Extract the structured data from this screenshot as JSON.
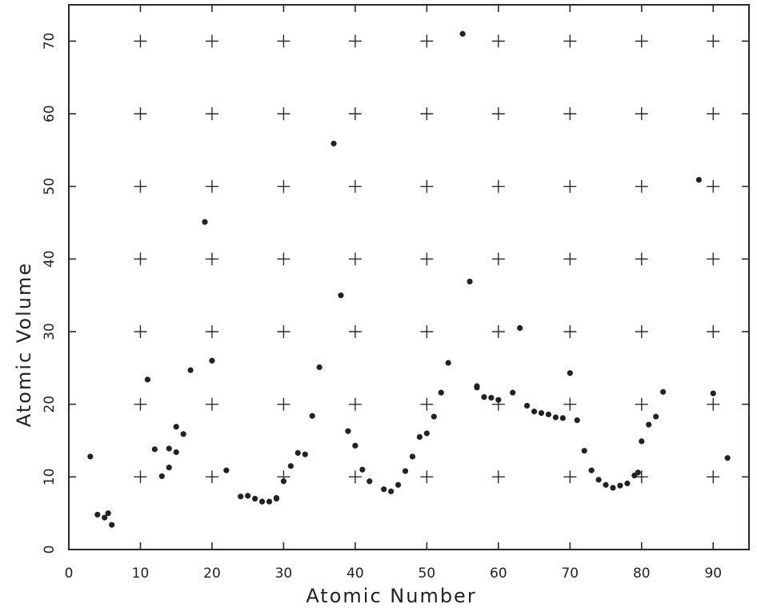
{
  "chart_data": {
    "type": "scatter",
    "xlabel": "Atomic Number",
    "ylabel": "Atomic Volume",
    "xlim": [
      0,
      95
    ],
    "ylim": [
      0,
      75
    ],
    "x_ticks": [
      0,
      10,
      20,
      30,
      40,
      50,
      60,
      70,
      80,
      90
    ],
    "y_ticks": [
      0,
      10,
      20,
      30,
      40,
      50,
      60,
      70
    ],
    "grid": "plus-sign markers at tick intersections",
    "series": [
      {
        "points": [
          [
            3,
            12.8
          ],
          [
            4,
            4.8
          ],
          [
            5,
            4.4
          ],
          [
            5.5,
            5.0
          ],
          [
            6,
            3.4
          ],
          [
            11,
            23.4
          ],
          [
            12,
            13.8
          ],
          [
            13,
            10.1
          ],
          [
            14,
            11.3
          ],
          [
            14,
            13.9
          ],
          [
            15,
            16.9
          ],
          [
            15,
            13.4
          ],
          [
            16,
            15.9
          ],
          [
            17,
            24.7
          ],
          [
            19,
            45.1
          ],
          [
            20,
            26.0
          ],
          [
            22,
            10.9
          ],
          [
            24,
            7.3
          ],
          [
            25,
            7.4
          ],
          [
            26,
            7.0
          ],
          [
            27,
            6.6
          ],
          [
            28,
            6.6
          ],
          [
            29,
            7.0
          ],
          [
            29,
            7.1
          ],
          [
            30,
            9.4
          ],
          [
            31,
            11.5
          ],
          [
            32,
            13.3
          ],
          [
            33,
            13.1
          ],
          [
            34,
            18.4
          ],
          [
            35,
            25.1
          ],
          [
            37,
            55.9
          ],
          [
            38,
            35.0
          ],
          [
            39,
            16.3
          ],
          [
            40,
            14.3
          ],
          [
            41,
            11.0
          ],
          [
            42,
            9.4
          ],
          [
            44,
            8.3
          ],
          [
            45,
            8.0
          ],
          [
            46,
            8.9
          ],
          [
            47,
            10.8
          ],
          [
            48,
            12.8
          ],
          [
            49,
            15.5
          ],
          [
            50,
            16.0
          ],
          [
            51,
            18.3
          ],
          [
            52,
            21.6
          ],
          [
            53,
            25.7
          ],
          [
            55,
            71.0
          ],
          [
            56,
            36.9
          ],
          [
            57,
            22.5
          ],
          [
            57,
            22.3
          ],
          [
            58,
            21.0
          ],
          [
            59,
            20.9
          ],
          [
            60,
            20.6
          ],
          [
            62,
            21.6
          ],
          [
            63,
            30.5
          ],
          [
            64,
            19.8
          ],
          [
            65,
            19.0
          ],
          [
            66,
            18.8
          ],
          [
            67,
            18.6
          ],
          [
            68,
            18.2
          ],
          [
            69,
            18.1
          ],
          [
            70,
            24.3
          ],
          [
            71,
            17.8
          ],
          [
            72,
            13.6
          ],
          [
            73,
            10.9
          ],
          [
            74,
            9.6
          ],
          [
            75,
            8.9
          ],
          [
            76,
            8.5
          ],
          [
            77,
            8.8
          ],
          [
            78,
            9.1
          ],
          [
            79,
            10.2
          ],
          [
            79.5,
            10.6
          ],
          [
            80,
            14.9
          ],
          [
            81,
            17.2
          ],
          [
            82,
            18.3
          ],
          [
            83,
            21.7
          ],
          [
            88,
            50.9
          ],
          [
            90,
            21.5
          ],
          [
            92,
            12.6
          ]
        ]
      }
    ]
  }
}
